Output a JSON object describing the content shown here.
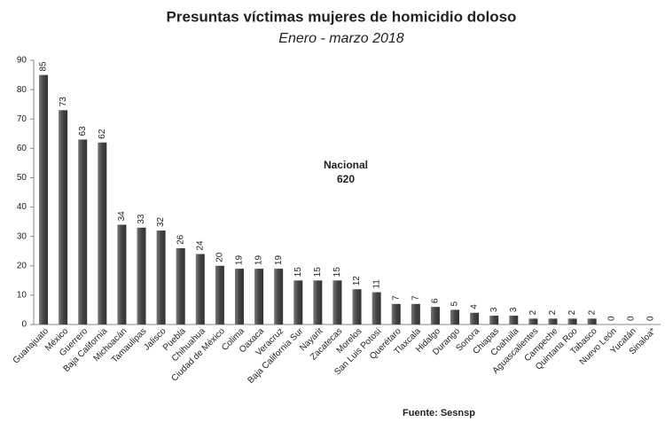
{
  "chart_data": {
    "type": "bar",
    "title": "Presuntas víctimas mujeres de homicidio doloso",
    "subtitle": "Enero - marzo 2018",
    "categories": [
      "Guanajuato",
      "México",
      "Guerrero",
      "Baja California",
      "Michoacán",
      "Tamaulipas",
      "Jalisco",
      "Puebla",
      "Chihuahua",
      "Ciudad de México",
      "Colima",
      "Oaxaca",
      "Veracruz",
      "Baja California Sur",
      "Nayarit",
      "Zacatecas",
      "Morelos",
      "San Luis Potosí",
      "Querétaro",
      "Tlaxcala",
      "Hidalgo",
      "Durango",
      "Sonora",
      "Chiapas",
      "Coahuila",
      "Aguascalientes",
      "Campeche",
      "Quintana Roo",
      "Tabasco",
      "Nuevo León",
      "Yucatán",
      "Sinaloa*"
    ],
    "values": [
      85,
      73,
      63,
      62,
      34,
      33,
      32,
      26,
      24,
      20,
      19,
      19,
      19,
      15,
      15,
      15,
      12,
      11,
      7,
      7,
      6,
      5,
      4,
      3,
      3,
      2,
      2,
      2,
      2,
      0,
      0,
      0
    ],
    "color": "#555555",
    "ylim": [
      0,
      90
    ],
    "yticks": [
      0,
      10,
      20,
      30,
      40,
      50,
      60,
      70,
      80,
      90
    ],
    "grid": false,
    "annotation": {
      "text": "Nacional",
      "value": 620
    },
    "source": "Fuente: Sesnsp"
  }
}
